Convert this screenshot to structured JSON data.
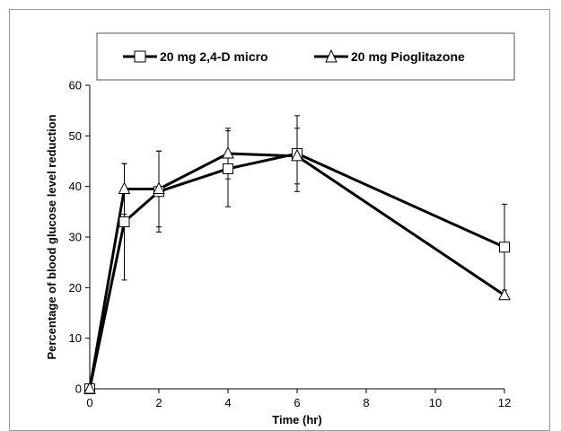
{
  "chart_data": {
    "type": "line",
    "title": "",
    "xlabel": "Time (hr)",
    "ylabel": "Percentage of blood glucose level reduction",
    "x": [
      0,
      1,
      2,
      4,
      6,
      12
    ],
    "xlim": [
      0,
      12
    ],
    "ylim": [
      0,
      60
    ],
    "xticks": [
      "0",
      "2",
      "4",
      "6",
      "8",
      "10",
      "12"
    ],
    "yticks": [
      "0",
      "10",
      "20",
      "30",
      "40",
      "50",
      "60"
    ],
    "grid": false,
    "legend_position": "top",
    "series": [
      {
        "name": "20 mg 2,4-D micro",
        "marker": "square",
        "values": [
          0,
          33,
          39,
          43.5,
          46.5,
          28
        ],
        "error": [
          0,
          11.5,
          8,
          7.5,
          7.5,
          8.5
        ]
      },
      {
        "name": "20 mg Pioglitazone",
        "marker": "triangle",
        "values": [
          0,
          39.5,
          39.5,
          46.5,
          46,
          18.5
        ],
        "error": [
          0,
          5,
          7.5,
          5,
          5.5,
          0
        ]
      }
    ],
    "colors": {
      "line": "#000000",
      "marker_fill": "#ffffff"
    }
  }
}
